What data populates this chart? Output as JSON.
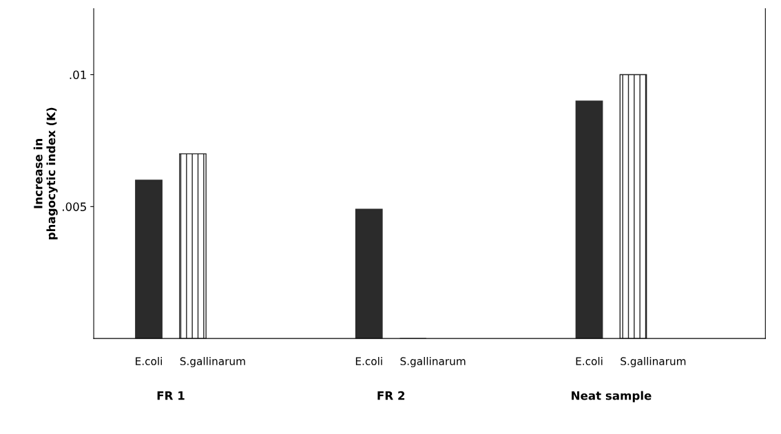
{
  "chart_data": {
    "type": "bar",
    "ylabel": "Increase in\nphagocytic index (K)",
    "categories": [
      "FR 1",
      "FR 2",
      "Neat sample"
    ],
    "series": [
      {
        "name": "E.coli",
        "color": "#2b2b2b",
        "values": [
          0.006,
          0.0049,
          0.009
        ]
      },
      {
        "name": "S.gallinarum",
        "color": "#222222",
        "values": [
          0.007,
          0,
          0.01
        ]
      }
    ],
    "ylim": [
      0,
      0.0125
    ],
    "yticks": [
      {
        "value": 0.005,
        "label": ".005"
      },
      {
        "value": 0.01,
        "label": ".01"
      }
    ],
    "grid": false,
    "legend": false
  }
}
